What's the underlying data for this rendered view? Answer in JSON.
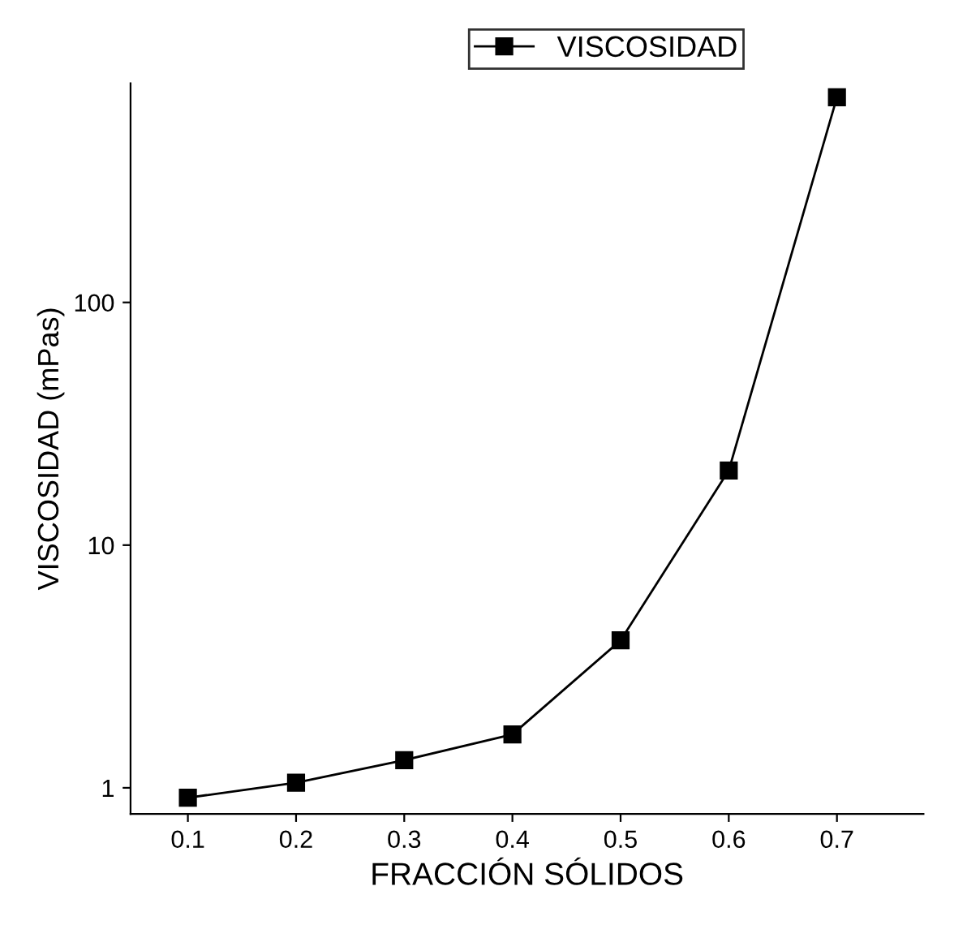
{
  "chart_data": {
    "type": "line",
    "xlabel": "FRACCIÓN SÓLIDOS",
    "ylabel": "VISCOSIDAD (mPas)",
    "x": [
      0.1,
      0.2,
      0.3,
      0.4,
      0.5,
      0.6,
      0.7
    ],
    "series": [
      {
        "name": "VISCOSIDAD",
        "color": "#000000",
        "values": [
          0.91,
          1.05,
          1.3,
          1.66,
          4.05,
          20.3,
          700
        ]
      }
    ],
    "log": "y",
    "xlim": [
      0.047,
      0.78
    ],
    "xticks": [
      0.1,
      0.2,
      0.3,
      0.4,
      0.5,
      0.6,
      0.7
    ],
    "ylim": [
      0.78,
      800
    ],
    "yticks": [
      1,
      10,
      100
    ],
    "marker": "square",
    "line_style": "solid",
    "legend": "top",
    "grid": false
  }
}
